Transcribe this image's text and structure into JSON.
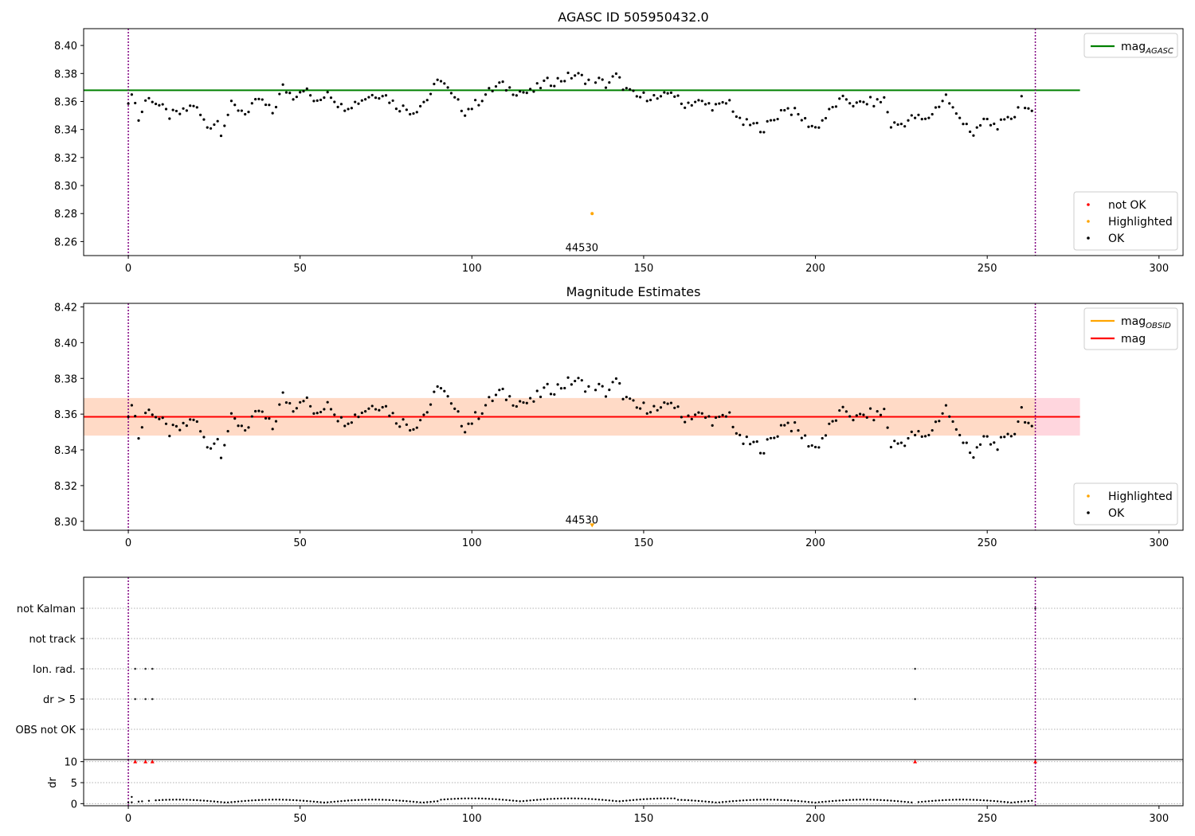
{
  "chart_data": [
    {
      "type": "scatter",
      "title": "AGASC ID 505950432.0",
      "xlim": [
        -13,
        307
      ],
      "ylim": [
        8.25,
        8.412
      ],
      "xticks": [
        0,
        50,
        100,
        150,
        200,
        250,
        300
      ],
      "yticks": [
        8.26,
        8.28,
        8.3,
        8.32,
        8.34,
        8.36,
        8.38,
        8.4
      ],
      "ytick_labels": [
        "8.26",
        "8.28",
        "8.30",
        "8.32",
        "8.34",
        "8.36",
        "8.38",
        "8.40"
      ],
      "vlines": [
        0,
        264
      ],
      "hline": {
        "y": 8.368,
        "x_end": 277,
        "color": "#008000",
        "label": "mag_AGASC"
      },
      "highlight": {
        "x": 135,
        "y": 8.28
      },
      "annotation": {
        "text": "44530",
        "x": 132,
        "y": 8.256
      },
      "legend_line": [
        {
          "label_main": "mag",
          "label_sub": "AGASC",
          "color": "#008000"
        }
      ],
      "legend_points": [
        {
          "label": "not OK",
          "color": "#ff0000"
        },
        {
          "label": "Highlighted",
          "color": "#ffa500"
        },
        {
          "label": "OK",
          "color": "#000000"
        }
      ],
      "legend_line_position": "upper right",
      "legend_points_position": "lower right",
      "grid": false
    },
    {
      "type": "scatter",
      "title": "Magnitude Estimates",
      "xlim": [
        -13,
        307
      ],
      "ylim": [
        8.295,
        8.422
      ],
      "xticks": [
        0,
        50,
        100,
        150,
        200,
        250,
        300
      ],
      "yticks": [
        8.3,
        8.32,
        8.34,
        8.36,
        8.38,
        8.4,
        8.42
      ],
      "ytick_labels": [
        "8.30",
        "8.32",
        "8.34",
        "8.36",
        "8.38",
        "8.40",
        "8.42"
      ],
      "vlines": [
        0,
        264
      ],
      "mag_line": {
        "y": 8.3585,
        "x_end": 277,
        "color": "#ff0000"
      },
      "band_outer": {
        "y_low": 8.348,
        "y_high": 8.369,
        "x_end": 277,
        "color": "#ffd6de"
      },
      "band_inner": {
        "y_low": 8.348,
        "y_high": 8.369,
        "x_end": 264,
        "color": "#ffdac6"
      },
      "highlight": {
        "x": 135,
        "y": 8.2975
      },
      "annotation": {
        "text": "44530",
        "x": 132,
        "y": 8.301
      },
      "legend_line": [
        {
          "label_main": "mag",
          "label_sub": "OBSID",
          "color": "#ffa500"
        },
        {
          "label_main": "mag",
          "label_sub": "",
          "color": "#ff0000"
        }
      ],
      "legend_points": [
        {
          "label": "Highlighted",
          "color": "#ffa500"
        },
        {
          "label": "OK",
          "color": "#000000"
        }
      ],
      "legend_line_position": "upper right",
      "legend_points_position": "lower right",
      "grid": false
    },
    {
      "type": "scatter",
      "title": "",
      "xlim": [
        -13,
        307
      ],
      "categories": [
        "not Kalman",
        "not track",
        "Ion. rad.",
        "dr > 5",
        "OBS not OK"
      ],
      "flags": {
        "not Kalman": [
          264
        ],
        "not track": [],
        "Ion. rad.": [
          2,
          5,
          7,
          229
        ],
        "dr > 5": [
          2,
          5,
          7,
          229
        ],
        "OBS not OK": []
      },
      "grid": true
    },
    {
      "type": "scatter",
      "title": "",
      "xlim": [
        -13,
        307
      ],
      "ylim": [
        -0.5,
        10.5
      ],
      "xticks": [
        0,
        50,
        100,
        150,
        200,
        250,
        300
      ],
      "yticks": [
        0,
        5,
        10
      ],
      "ytick_labels": [
        "0",
        "5",
        "10"
      ],
      "ylabel": "dr",
      "vlines": [
        0,
        264
      ],
      "grid": true
    }
  ]
}
